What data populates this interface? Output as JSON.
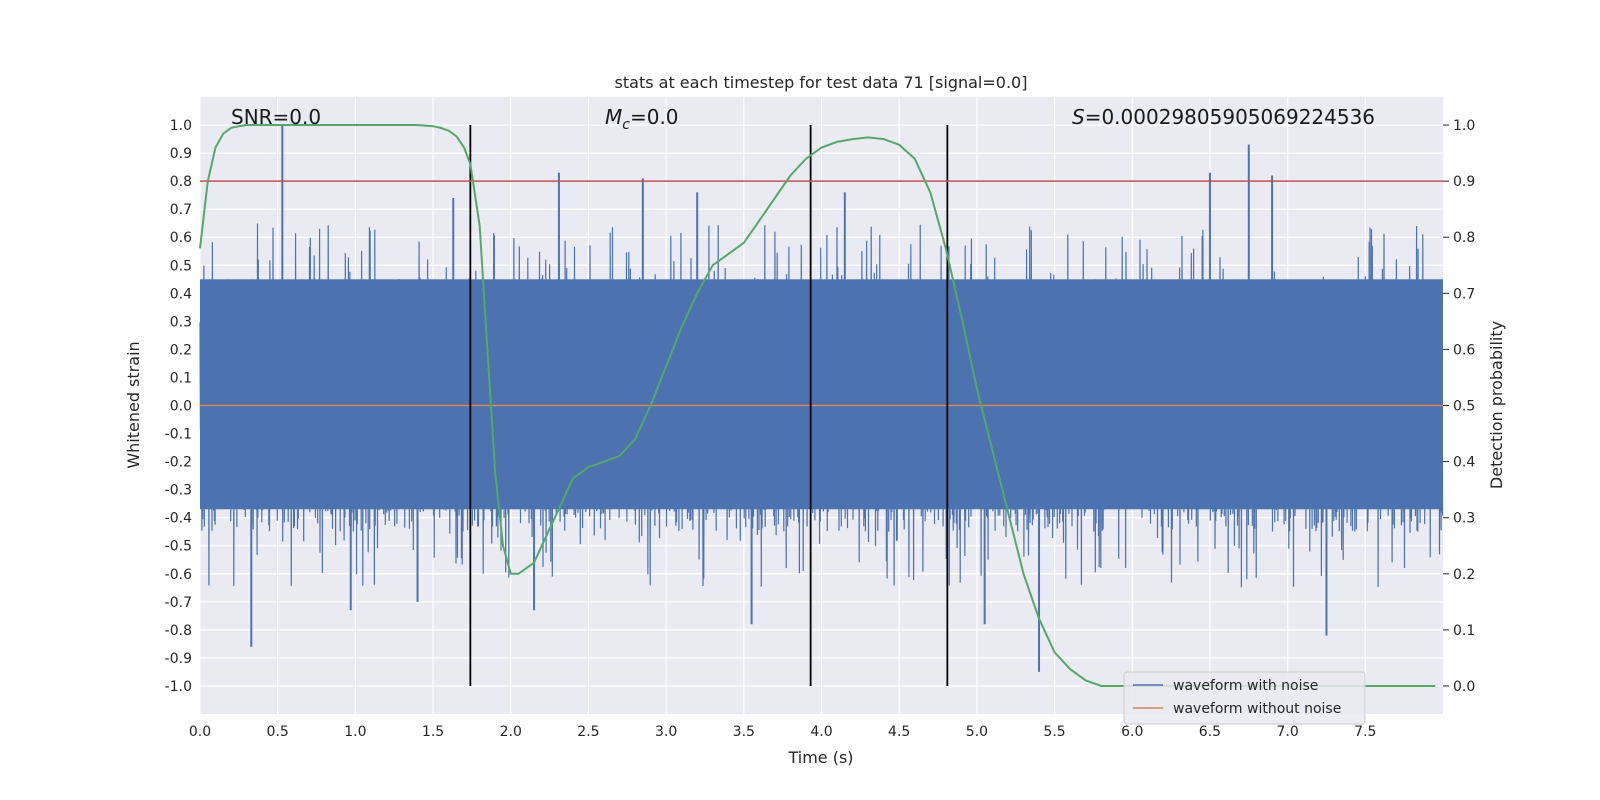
{
  "chart_data": {
    "type": "line",
    "title": "stats at each timestep for test data 71 [signal=0.0]",
    "xlabel": "Time (s)",
    "ylabel": "Whitened strain",
    "y2label": "Detection probability",
    "xlim": [
      0,
      8
    ],
    "ylim": [
      -1.1,
      1.1
    ],
    "y2lim": [
      -0.05,
      1.05
    ],
    "xticks": [
      "0.0",
      "0.5",
      "1.0",
      "1.5",
      "2.0",
      "2.5",
      "3.0",
      "3.5",
      "4.0",
      "4.5",
      "5.0",
      "5.5",
      "6.0",
      "6.5",
      "7.0",
      "7.5"
    ],
    "yticks": [
      "1.0",
      "0.9",
      "0.8",
      "0.7",
      "0.6",
      "0.5",
      "0.4",
      "0.3",
      "0.2",
      "0.1",
      "0.0",
      "-0.1",
      "-0.2",
      "-0.3",
      "-0.4",
      "-0.5",
      "-0.6",
      "-0.7",
      "-0.8",
      "-0.9",
      "-1.0"
    ],
    "y2ticks": [
      "1.0",
      "0.9",
      "0.8",
      "0.7",
      "0.6",
      "0.5",
      "0.4",
      "0.3",
      "0.2",
      "0.1",
      "0.0"
    ],
    "annotations": {
      "snr": "SNR=0.0",
      "mc_symbol": "M",
      "mc_sub": "c",
      "mc_value": "=0.0",
      "s_symbol": "S",
      "s_value": "=0.00029805905069224536"
    },
    "threshold_line": {
      "axis": "right",
      "value": 0.9,
      "color": "#c44e52"
    },
    "vertical_lines": [
      1.74,
      3.93,
      4.81
    ],
    "noise": {
      "name": "waveform with noise",
      "color": "#4c72b0",
      "t_end": 8.0,
      "core_band": [
        -0.37,
        0.45
      ],
      "spikes_up": [
        {
          "t": 0.53,
          "v": 1.0
        },
        {
          "t": 2.31,
          "v": 0.83
        },
        {
          "t": 2.85,
          "v": 0.81
        },
        {
          "t": 6.75,
          "v": 0.93
        },
        {
          "t": 6.9,
          "v": 0.82
        },
        {
          "t": 6.5,
          "v": 0.83
        },
        {
          "t": 1.63,
          "v": 0.74
        },
        {
          "t": 3.2,
          "v": 0.76
        },
        {
          "t": 4.15,
          "v": 0.76
        }
      ],
      "spikes_down": [
        {
          "t": 0.33,
          "v": -0.86
        },
        {
          "t": 5.4,
          "v": -0.95
        },
        {
          "t": 3.55,
          "v": -0.78
        },
        {
          "t": 0.97,
          "v": -0.73
        },
        {
          "t": 1.4,
          "v": -0.7
        },
        {
          "t": 5.05,
          "v": -0.78
        },
        {
          "t": 7.25,
          "v": -0.82
        },
        {
          "t": 2.15,
          "v": -0.73
        }
      ]
    },
    "clean": {
      "name": "waveform without noise",
      "color": "#dd8452",
      "value": 0.0
    },
    "probability": {
      "color": "#55a868",
      "t": [
        0.0,
        0.05,
        0.1,
        0.15,
        0.2,
        0.25,
        0.3,
        0.4,
        0.5,
        0.6,
        0.8,
        1.0,
        1.2,
        1.4,
        1.5,
        1.55,
        1.6,
        1.65,
        1.7,
        1.74,
        1.8,
        1.85,
        1.9,
        1.95,
        2.0,
        2.05,
        2.1,
        2.15,
        2.2,
        2.3,
        2.4,
        2.5,
        2.6,
        2.7,
        2.8,
        2.9,
        3.0,
        3.1,
        3.2,
        3.3,
        3.4,
        3.5,
        3.6,
        3.7,
        3.8,
        3.9,
        4.0,
        4.1,
        4.2,
        4.3,
        4.4,
        4.5,
        4.6,
        4.7,
        4.8,
        4.9,
        5.0,
        5.1,
        5.2,
        5.3,
        5.4,
        5.5,
        5.6,
        5.7,
        5.8,
        5.9,
        6.0,
        6.1,
        6.2,
        6.4,
        6.6,
        7.0,
        7.4,
        7.95
      ],
      "p": [
        0.78,
        0.9,
        0.96,
        0.985,
        0.995,
        0.998,
        1.0,
        1.0,
        1.0,
        1.0,
        1.0,
        1.0,
        1.0,
        1.0,
        0.998,
        0.995,
        0.99,
        0.98,
        0.96,
        0.93,
        0.82,
        0.6,
        0.38,
        0.25,
        0.2,
        0.2,
        0.21,
        0.22,
        0.25,
        0.31,
        0.37,
        0.39,
        0.4,
        0.41,
        0.44,
        0.5,
        0.57,
        0.64,
        0.7,
        0.75,
        0.77,
        0.79,
        0.83,
        0.87,
        0.91,
        0.94,
        0.96,
        0.97,
        0.975,
        0.978,
        0.975,
        0.965,
        0.94,
        0.88,
        0.78,
        0.66,
        0.53,
        0.42,
        0.31,
        0.2,
        0.12,
        0.06,
        0.03,
        0.01,
        0.0,
        0.0,
        0.0,
        0.0,
        0.0,
        0.0,
        0.0,
        0.0,
        0.0,
        0.0
      ]
    },
    "legend": {
      "placement": "lower-right",
      "entries": [
        {
          "label": "waveform with noise",
          "color": "#4c72b0"
        },
        {
          "label": "waveform without noise",
          "color": "#dd8452"
        }
      ]
    }
  }
}
